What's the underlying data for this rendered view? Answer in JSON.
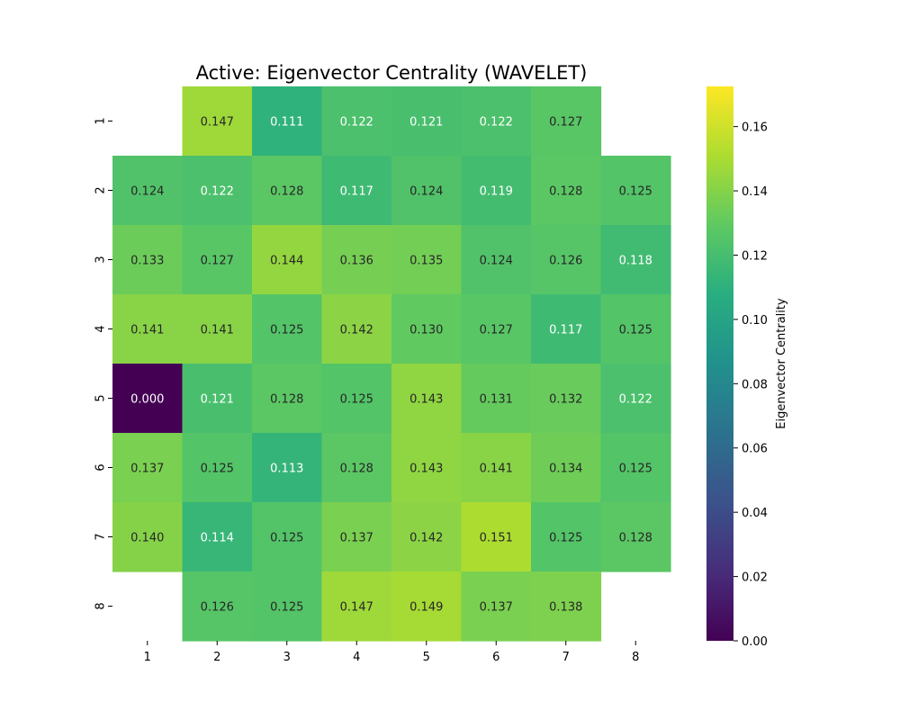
{
  "chart_data": {
    "type": "heatmap",
    "title": "Active: Eigenvector Centrality (WAVELET)",
    "xlabel": "",
    "ylabel": "",
    "x_tick_labels": [
      "1",
      "2",
      "3",
      "4",
      "5",
      "6",
      "7",
      "8"
    ],
    "y_tick_labels": [
      "1",
      "2",
      "3",
      "4",
      "5",
      "6",
      "7",
      "8"
    ],
    "values": [
      [
        null,
        0.147,
        0.111,
        0.122,
        0.121,
        0.122,
        0.127,
        null
      ],
      [
        0.124,
        0.122,
        0.128,
        0.117,
        0.124,
        0.119,
        0.128,
        0.125
      ],
      [
        0.133,
        0.127,
        0.144,
        0.136,
        0.135,
        0.124,
        0.126,
        0.118
      ],
      [
        0.141,
        0.141,
        0.125,
        0.142,
        0.13,
        0.127,
        0.117,
        0.125
      ],
      [
        0.0,
        0.121,
        0.128,
        0.125,
        0.143,
        0.131,
        0.132,
        0.122
      ],
      [
        0.137,
        0.125,
        0.113,
        0.128,
        0.143,
        0.141,
        0.134,
        0.125
      ],
      [
        0.14,
        0.114,
        0.125,
        0.137,
        0.142,
        0.151,
        0.125,
        0.128
      ],
      [
        null,
        0.126,
        0.125,
        0.147,
        0.149,
        0.137,
        0.138,
        null
      ]
    ],
    "colormap": "viridis",
    "vmin": 0.0,
    "vmax": 0.1725,
    "colorbar": {
      "label": "Eigenvector Centrality",
      "ticks": [
        "0.00",
        "0.02",
        "0.04",
        "0.06",
        "0.08",
        "0.10",
        "0.12",
        "0.14",
        "0.16"
      ],
      "tick_values": [
        0.0,
        0.02,
        0.04,
        0.06,
        0.08,
        0.1,
        0.12,
        0.14,
        0.16
      ]
    },
    "grid": false
  }
}
